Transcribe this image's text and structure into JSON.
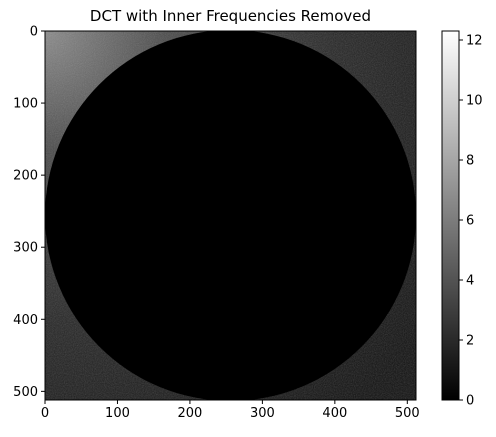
{
  "chart_data": {
    "type": "heatmap",
    "title": "DCT with Inner Frequencies Removed",
    "xlabel": "",
    "ylabel": "",
    "image_size": [
      512,
      512
    ],
    "xlim": [
      0,
      512
    ],
    "ylim": [
      512,
      0
    ],
    "x_ticks": [
      0,
      100,
      200,
      300,
      400,
      500
    ],
    "y_ticks": [
      0,
      100,
      200,
      300,
      400,
      500
    ],
    "mask": {
      "shape": "circle",
      "center": [
        256,
        256
      ],
      "radius": 256,
      "value": 0
    },
    "colormap": "gray",
    "colorbar": {
      "min": 0,
      "max": 12.3,
      "ticks": [
        0,
        2,
        4,
        6,
        8,
        10,
        12
      ]
    },
    "grid": false
  }
}
